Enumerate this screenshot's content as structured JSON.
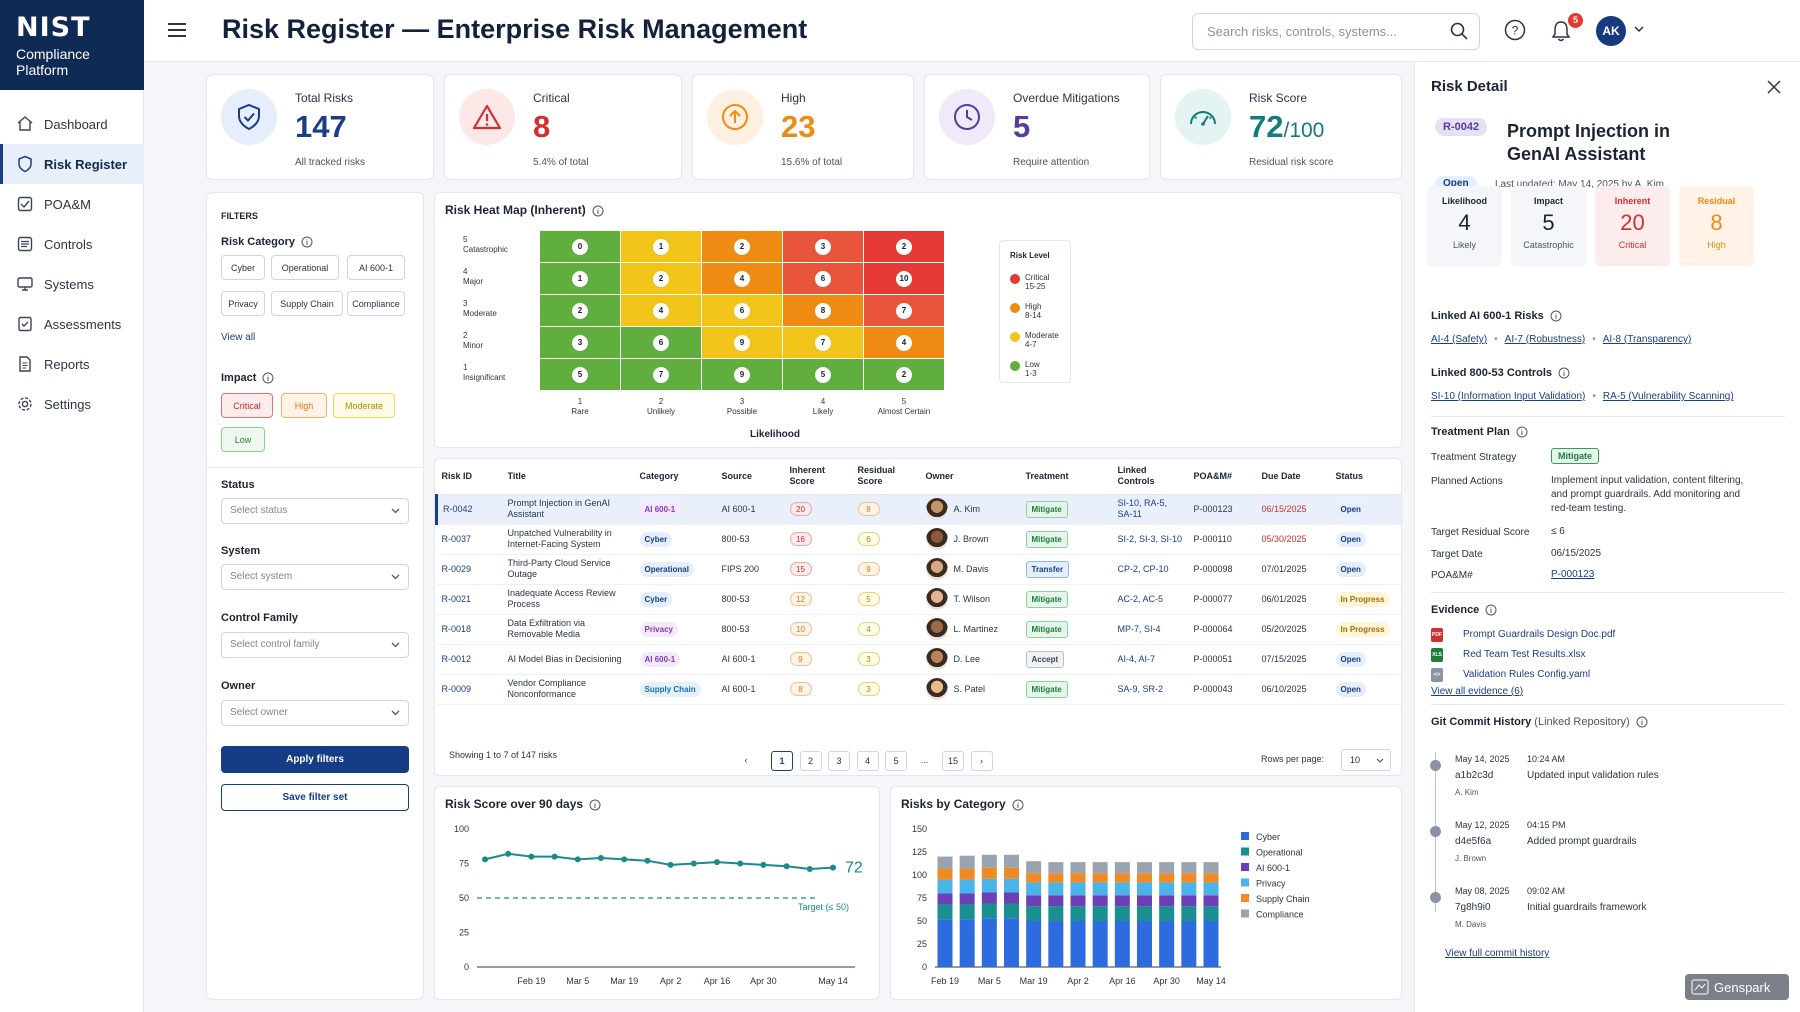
{
  "brand": {
    "logo": "NIST",
    "sub1": "Compliance",
    "sub2": "Platform"
  },
  "nav": [
    {
      "label": "Dashboard",
      "icon": "home-icon"
    },
    {
      "label": "Risk Register",
      "icon": "shield-icon",
      "active": true
    },
    {
      "label": "POA&M",
      "icon": "checklist-icon"
    },
    {
      "label": "Controls",
      "icon": "controls-icon"
    },
    {
      "label": "Systems",
      "icon": "monitor-icon"
    },
    {
      "label": "Assessments",
      "icon": "assessment-icon"
    },
    {
      "label": "Reports",
      "icon": "report-icon"
    },
    {
      "label": "Settings",
      "icon": "gear-icon"
    }
  ],
  "header": {
    "title": "Risk Register — Enterprise Risk Management",
    "search_placeholder": "Search risks, controls, systems...",
    "notifications": "5",
    "avatar": "AK"
  },
  "kpis": [
    {
      "label": "Total Risks",
      "value": "147",
      "sub": "All tracked risks",
      "color": "#1a3e85"
    },
    {
      "label": "Critical",
      "value": "8",
      "sub": "5.4% of total",
      "color": "#d32f2f"
    },
    {
      "label": "High",
      "value": "23",
      "sub": "15.6% of total",
      "color": "#ef8a13"
    },
    {
      "label": "Overdue Mitigations",
      "value": "5",
      "sub": "Require attention",
      "color": "#5b3a9e"
    },
    {
      "label": "Risk Score",
      "value": "72",
      "value_suffix": "/100",
      "sub": "Residual risk score",
      "color": "#0f7d7a"
    }
  ],
  "filters": {
    "heading": "FILTERS",
    "risk_category_label": "Risk Category",
    "categories": [
      "Cyber",
      "Operational",
      "AI 600-1",
      "Privacy",
      "Supply Chain",
      "Compliance"
    ],
    "view_all": "View all",
    "impact_label": "Impact",
    "impacts": [
      "Critical",
      "High",
      "Moderate",
      "Low"
    ],
    "status_label": "Status",
    "status_placeholder": "Select status",
    "system_label": "System",
    "system_placeholder": "Select system",
    "family_label": "Control Family",
    "family_placeholder": "Select control family",
    "owner_label": "Owner",
    "owner_placeholder": "Select owner",
    "apply": "Apply filters",
    "save": "Save filter set"
  },
  "heatmap": {
    "title": "Risk Heat Map (Inherent)",
    "y_levels": [
      {
        "n": "5",
        "name": "Catastrophic"
      },
      {
        "n": "4",
        "name": "Major"
      },
      {
        "n": "3",
        "name": "Moderate"
      },
      {
        "n": "2",
        "name": "Minor"
      },
      {
        "n": "1",
        "name": "Insignificant"
      }
    ],
    "x_levels": [
      {
        "n": "1",
        "name": "Rare"
      },
      {
        "n": "2",
        "name": "Unlikely"
      },
      {
        "n": "3",
        "name": "Possible"
      },
      {
        "n": "4",
        "name": "Likely"
      },
      {
        "n": "5",
        "name": "Almost Certain"
      }
    ],
    "xlabel": "Likelihood",
    "counts": [
      [
        "0",
        "1",
        "2",
        "3",
        "2"
      ],
      [
        "1",
        "2",
        "4",
        "6",
        "10"
      ],
      [
        "2",
        "4",
        "6",
        "8",
        "7"
      ],
      [
        "3",
        "6",
        "9",
        "7",
        "4"
      ],
      [
        "5",
        "7",
        "9",
        "5",
        "2"
      ]
    ],
    "colors": [
      [
        "#5fae3e",
        "#f0c419",
        "#ef8a13",
        "#e8553a",
        "#e53935"
      ],
      [
        "#5fae3e",
        "#f0c419",
        "#ef8a13",
        "#e8553a",
        "#e53935"
      ],
      [
        "#5fae3e",
        "#f0c419",
        "#f0c419",
        "#ef8a13",
        "#e8553a"
      ],
      [
        "#5fae3e",
        "#5fae3e",
        "#f0c419",
        "#f0c419",
        "#ef8a13"
      ],
      [
        "#5fae3e",
        "#5fae3e",
        "#5fae3e",
        "#5fae3e",
        "#5fae3e"
      ]
    ],
    "legend_title": "Risk Level",
    "legend": [
      {
        "name": "Critical",
        "range": "15-25",
        "color": "#e53935"
      },
      {
        "name": "High",
        "range": "8-14",
        "color": "#ef8a13"
      },
      {
        "name": "Moderate",
        "range": "4-7",
        "color": "#f0c419"
      },
      {
        "name": "Low",
        "range": "1-3",
        "color": "#5fae3e"
      }
    ]
  },
  "table": {
    "columns": [
      "Risk ID",
      "Title",
      "Category",
      "Source",
      "Inherent Score",
      "Residual Score",
      "Owner",
      "Treatment",
      "Linked Controls",
      "POA&M#",
      "Due Date",
      "Status"
    ],
    "rows": [
      {
        "id": "R-0042",
        "title": "Prompt Injection in GenAI Assistant",
        "category": "AI 600-1",
        "source": "AI 600-1",
        "inherent": "20",
        "residual": "8",
        "owner": "A. Kim",
        "treatment": "Mitigate",
        "controls": "SI-10, RA-5, SA-11",
        "poam": "P-000123",
        "due": "06/15/2025",
        "due_overdue": true,
        "status": "Open"
      },
      {
        "id": "R-0037",
        "title": "Unpatched Vulnerability in Internet-Facing System",
        "category": "Cyber",
        "source": "800-53",
        "inherent": "16",
        "residual": "6",
        "owner": "J. Brown",
        "treatment": "Mitigate",
        "controls": "SI-2, SI-3, SI-10",
        "poam": "P-000110",
        "due": "05/30/2025",
        "due_overdue": true,
        "status": "Open"
      },
      {
        "id": "R-0029",
        "title": "Third-Party Cloud Service Outage",
        "category": "Operational",
        "source": "FIPS 200",
        "inherent": "15",
        "residual": "9",
        "owner": "M. Davis",
        "treatment": "Transfer",
        "controls": "CP-2, CP-10",
        "poam": "P-000098",
        "due": "07/01/2025",
        "due_overdue": false,
        "status": "Open"
      },
      {
        "id": "R-0021",
        "title": "Inadequate Access Review Process",
        "category": "Cyber",
        "source": "800-53",
        "inherent": "12",
        "residual": "5",
        "owner": "T. Wilson",
        "treatment": "Mitigate",
        "controls": "AC-2, AC-5",
        "poam": "P-000077",
        "due": "06/01/2025",
        "due_overdue": false,
        "status": "In Progress"
      },
      {
        "id": "R-0018",
        "title": "Data Exfiltration via Removable Media",
        "category": "Privacy",
        "source": "800-53",
        "inherent": "10",
        "residual": "4",
        "owner": "L. Martinez",
        "treatment": "Mitigate",
        "controls": "MP-7, SI-4",
        "poam": "P-000064",
        "due": "05/20/2025",
        "due_overdue": false,
        "status": "In Progress"
      },
      {
        "id": "R-0012",
        "title": "AI Model Bias in Decisioning",
        "category": "AI 600-1",
        "source": "AI 600-1",
        "inherent": "9",
        "residual": "3",
        "owner": "D. Lee",
        "treatment": "Accept",
        "controls": "AI-4, AI-7",
        "poam": "P-000051",
        "due": "07/15/2025",
        "due_overdue": false,
        "status": "Open"
      },
      {
        "id": "R-0009",
        "title": "Vendor Compliance Nonconformance",
        "category": "Supply Chain",
        "source": "AI 600-1",
        "inherent": "8",
        "residual": "3",
        "owner": "S. Patel",
        "treatment": "Mitigate",
        "controls": "SA-9, SR-2",
        "poam": "P-000043",
        "due": "06/10/2025",
        "due_overdue": false,
        "status": "Open"
      }
    ],
    "showing": "Showing 1 to 7 of 147 risks",
    "pages": [
      "1",
      "2",
      "3",
      "4",
      "5",
      "...",
      "15"
    ],
    "rows_per_page_label": "Rows per page:",
    "rows_per_page": "10"
  },
  "chart_data": [
    {
      "type": "line",
      "title": "Risk Score over 90 days",
      "x": [
        "Feb 12",
        "Feb 15",
        "Feb 19",
        "Feb 26",
        "Mar 5",
        "Mar 12",
        "Mar 19",
        "Mar 26",
        "Apr 2",
        "Apr 9",
        "Apr 16",
        "Apr 23",
        "Apr 30",
        "May 7",
        "May 10",
        "May 14"
      ],
      "values": [
        78,
        82,
        80,
        80,
        78,
        79,
        78,
        77,
        74,
        75,
        76,
        75,
        74,
        73,
        71,
        72
      ],
      "ylim": [
        0,
        100
      ],
      "yticks": [
        "0",
        "25",
        "50",
        "75",
        "100"
      ],
      "xticks": [
        "Feb 19",
        "Mar 5",
        "Mar 19",
        "Apr 2",
        "Apr 16",
        "Apr 30",
        "May 14"
      ],
      "current_label": "72",
      "target": 50,
      "target_label": "Target (≤ 50)",
      "color": "#1a8a8a"
    },
    {
      "type": "bar",
      "stacked": true,
      "title": "Risks by Category",
      "categories": [
        "Feb 19",
        "Feb 26",
        "Mar 5",
        "Mar 12",
        "Mar 19",
        "Mar 26",
        "Apr 2",
        "Apr 9",
        "Apr 16",
        "Apr 23",
        "Apr 30",
        "May 7",
        "May 14"
      ],
      "ylim": [
        0,
        150
      ],
      "yticks": [
        "0",
        "25",
        "50",
        "75",
        "100",
        "125",
        "150"
      ],
      "xticks": [
        "Feb 19",
        "Mar 5",
        "Mar 19",
        "Apr 2",
        "Apr 16",
        "Apr 30",
        "May 14"
      ],
      "series": [
        {
          "name": "Cyber",
          "color": "#2d6cdf",
          "values": [
            52,
            52,
            53,
            53,
            50,
            50,
            50,
            50,
            50,
            50,
            50,
            50,
            50
          ]
        },
        {
          "name": "Operational",
          "color": "#1a8f8f",
          "values": [
            16,
            16,
            16,
            16,
            16,
            16,
            16,
            16,
            16,
            16,
            16,
            16,
            16
          ]
        },
        {
          "name": "AI 600-1",
          "color": "#6b3fb5",
          "values": [
            12,
            12,
            12,
            12,
            12,
            12,
            12,
            12,
            12,
            12,
            12,
            12,
            12
          ]
        },
        {
          "name": "Privacy",
          "color": "#4ab3e8",
          "values": [
            15,
            15,
            15,
            15,
            14,
            14,
            14,
            14,
            14,
            14,
            14,
            14,
            14
          ]
        },
        {
          "name": "Supply Chain",
          "color": "#f08a24",
          "values": [
            12,
            12,
            12,
            12,
            10,
            10,
            10,
            10,
            10,
            10,
            10,
            10,
            10
          ]
        },
        {
          "name": "Compliance",
          "color": "#9aa3b0",
          "values": [
            13,
            14,
            14,
            14,
            13,
            12,
            12,
            12,
            12,
            12,
            12,
            12,
            12
          ]
        }
      ]
    }
  ],
  "detail": {
    "heading": "Risk Detail",
    "id": "R-0042",
    "title_line1": "Prompt Injection in",
    "title_line2": "GenAI Assistant",
    "status": "Open",
    "updated": "Last updated: May 14, 2025 by A. Kim",
    "metrics": [
      {
        "t": "Likelihood",
        "n": "4",
        "s": "Likely",
        "bg": "#f4f6f9",
        "fg": "#1b2435"
      },
      {
        "t": "Impact",
        "n": "5",
        "s": "Catastrophic",
        "bg": "#f4f6f9",
        "fg": "#1b2435"
      },
      {
        "t": "Inherent",
        "n": "20",
        "s": "Critical",
        "bg": "#fdecec",
        "fg": "#d32f2f"
      },
      {
        "t": "Residual",
        "n": "8",
        "s": "High",
        "bg": "#fef3e6",
        "fg": "#ef8a13"
      }
    ],
    "ai_label": "Linked AI 600-1 Risks",
    "ai_links": [
      "AI-4 (Safety)",
      "AI-7 (Robustness)",
      "AI-8 (Transparency)"
    ],
    "ctl_label": "Linked 800-53 Controls",
    "ctl_links": [
      "SI-10 (Information Input Validation)",
      "RA-5 (Vulnerability Scanning)"
    ],
    "treatment_label": "Treatment Plan",
    "strategy_k": "Treatment Strategy",
    "strategy_v": "Mitigate",
    "actions_k": "Planned Actions",
    "actions_v1": "Implement input validation, content filtering,",
    "actions_v2": "and prompt guardrails. Add monitoring and",
    "actions_v3": "red-team testing.",
    "target_k": "Target Residual Score",
    "target_v": "≤ 6",
    "tdate_k": "Target Date",
    "tdate_v": "06/15/2025",
    "poam_k": "POA&M#",
    "poam_v": "P-000123",
    "evidence_label": "Evidence",
    "evidence": [
      {
        "name": "Prompt Guardrails Design Doc.pdf",
        "type": "PDF",
        "color": "#d32f2f"
      },
      {
        "name": "Red Team Test Results.xlsx",
        "type": "XLS",
        "color": "#1e7d3a"
      },
      {
        "name": "Validation Rules Config.yaml",
        "type": "&lt;/&gt;",
        "color": "#8a93a3"
      }
    ],
    "evidence_all": "View all evidence (6)",
    "git_label": "Git Commit History",
    "git_sub": "(Linked Repository)",
    "commits": [
      {
        "date": "May 14, 2025",
        "time": "10:24 AM",
        "hash": "a1b2c3d",
        "msg": "Updated input validation rules",
        "author": "A. Kim"
      },
      {
        "date": "May 12, 2025",
        "time": "04:15 PM",
        "hash": "d4e5f6a",
        "msg": "Added prompt guardrails",
        "author": "J. Brown"
      },
      {
        "date": "May 08, 2025",
        "time": "09:02 AM",
        "hash": "7g8h9i0",
        "msg": "Initial guardrails framework",
        "author": "M. Davis"
      }
    ],
    "git_all": "View full commit history"
  },
  "watermark": "Genspark"
}
